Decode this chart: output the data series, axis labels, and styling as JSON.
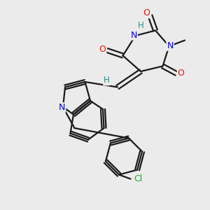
{
  "background_color": "#ebebeb",
  "bond_color": "#1a1a1a",
  "atom_colors": {
    "O": "#ee1100",
    "N": "#0000dd",
    "H_label": "#2e8b8b",
    "Cl": "#22aa22",
    "C": "#1a1a1a"
  },
  "figsize": [
    3.0,
    3.0
  ],
  "dpi": 100
}
